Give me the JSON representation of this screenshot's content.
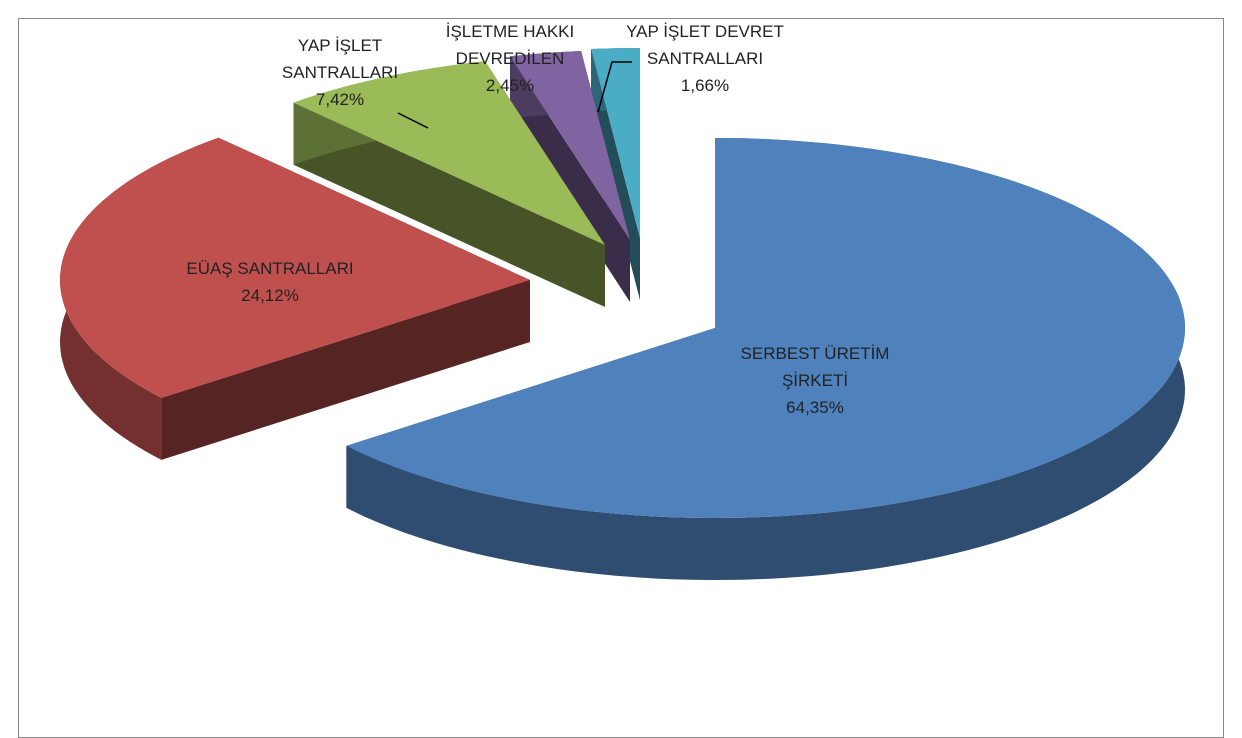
{
  "chart_data": {
    "type": "pie",
    "three_d": true,
    "exploded": true,
    "categories": [
      "SERBEST ÜRETİM ŞİRKETİ",
      "EÜAŞ SANTRALLARI",
      "YAP İŞLET SANTRALLARI",
      "İŞLETME HAKKI DEVREDİLEN",
      "YAP İŞLET DEVRET SANTRALLARI"
    ],
    "values": [
      64.35,
      24.12,
      7.42,
      2.45,
      1.66
    ],
    "value_labels": [
      "64,35%",
      "24,12%",
      "7,42%",
      "2,45%",
      "1,66%"
    ],
    "colors": [
      "#4f81bd",
      "#c0504d",
      "#9bbb59",
      "#8064a2",
      "#4bacc6"
    ]
  }
}
